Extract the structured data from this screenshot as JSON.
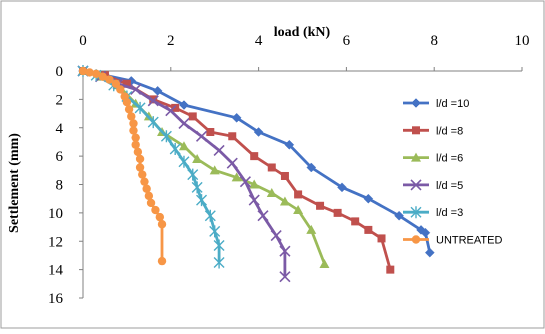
{
  "chart_data": {
    "type": "line",
    "title": "",
    "xlabel": "load (kN)",
    "ylabel": "Settlement (mm)",
    "xlim": [
      0,
      10
    ],
    "ylim": [
      0,
      16
    ],
    "y_inverted": true,
    "x_axis_position": "top",
    "x_ticks": [
      "0",
      "2",
      "4",
      "6",
      "8",
      "10"
    ],
    "y_ticks": [
      "0",
      "2",
      "4",
      "6",
      "8",
      "10",
      "12",
      "14",
      "16"
    ],
    "grid": false,
    "legend_position": "right",
    "series": [
      {
        "name": "l/d =10",
        "color": "#4472C4",
        "marker": "diamond",
        "points": [
          [
            0,
            0
          ],
          [
            0.5,
            0.3
          ],
          [
            1.1,
            0.7
          ],
          [
            1.7,
            1.4
          ],
          [
            2.3,
            2.4
          ],
          [
            3.5,
            3.3
          ],
          [
            4.0,
            4.3
          ],
          [
            4.7,
            5.2
          ],
          [
            5.2,
            6.8
          ],
          [
            5.9,
            8.2
          ],
          [
            6.5,
            9.0
          ],
          [
            7.2,
            10.2
          ],
          [
            7.7,
            11.2
          ],
          [
            7.8,
            11.4
          ],
          [
            7.9,
            12.8
          ]
        ]
      },
      {
        "name": "l/d =8",
        "color": "#C0504D",
        "marker": "square",
        "points": [
          [
            0,
            0
          ],
          [
            0.5,
            0.3
          ],
          [
            1.0,
            0.9
          ],
          [
            1.6,
            2.0
          ],
          [
            2.1,
            2.6
          ],
          [
            2.5,
            3.2
          ],
          [
            2.9,
            4.3
          ],
          [
            3.4,
            4.6
          ],
          [
            3.9,
            6.0
          ],
          [
            4.3,
            6.8
          ],
          [
            4.6,
            7.4
          ],
          [
            4.9,
            8.7
          ],
          [
            5.4,
            9.5
          ],
          [
            5.8,
            10.0
          ],
          [
            6.2,
            10.6
          ],
          [
            6.5,
            11.2
          ],
          [
            6.8,
            11.8
          ],
          [
            7.0,
            14.0
          ]
        ]
      },
      {
        "name": "l/d =6",
        "color": "#9BBB59",
        "marker": "triangle",
        "points": [
          [
            0,
            0
          ],
          [
            0.4,
            0.4
          ],
          [
            0.8,
            1.0
          ],
          [
            1.2,
            2.3
          ],
          [
            1.5,
            3.2
          ],
          [
            1.8,
            4.3
          ],
          [
            2.3,
            5.3
          ],
          [
            2.6,
            6.2
          ],
          [
            3.0,
            7.0
          ],
          [
            3.5,
            7.5
          ],
          [
            3.9,
            8.0
          ],
          [
            4.3,
            8.6
          ],
          [
            4.6,
            9.2
          ],
          [
            4.9,
            9.8
          ],
          [
            5.2,
            11.2
          ],
          [
            5.5,
            13.6
          ]
        ]
      },
      {
        "name": "l/d =5",
        "color": "#7B5AA6",
        "marker": "x",
        "points": [
          [
            0,
            0
          ],
          [
            0.4,
            0.4
          ],
          [
            0.8,
            0.9
          ],
          [
            1.2,
            1.3
          ],
          [
            1.6,
            2.1
          ],
          [
            2.0,
            2.8
          ],
          [
            2.3,
            3.7
          ],
          [
            2.7,
            4.6
          ],
          [
            3.1,
            5.6
          ],
          [
            3.4,
            6.5
          ],
          [
            3.7,
            7.8
          ],
          [
            3.9,
            9.1
          ],
          [
            4.1,
            10.2
          ],
          [
            4.4,
            11.6
          ],
          [
            4.6,
            12.7
          ],
          [
            4.6,
            14.5
          ]
        ]
      },
      {
        "name": "l/d =3",
        "color": "#4BACC6",
        "marker": "star",
        "points": [
          [
            0,
            0
          ],
          [
            0.3,
            0.3
          ],
          [
            0.7,
            1.0
          ],
          [
            1.0,
            1.8
          ],
          [
            1.3,
            2.6
          ],
          [
            1.6,
            3.6
          ],
          [
            1.9,
            4.6
          ],
          [
            2.1,
            5.5
          ],
          [
            2.3,
            6.4
          ],
          [
            2.5,
            7.3
          ],
          [
            2.6,
            8.2
          ],
          [
            2.7,
            9.1
          ],
          [
            2.9,
            10.2
          ],
          [
            3.0,
            11.3
          ],
          [
            3.1,
            12.3
          ],
          [
            3.1,
            13.5
          ]
        ]
      },
      {
        "name": "UNTREATED",
        "color": "#F79646",
        "marker": "circle",
        "points": [
          [
            0,
            0
          ],
          [
            0.15,
            0.1
          ],
          [
            0.3,
            0.2
          ],
          [
            0.45,
            0.4
          ],
          [
            0.6,
            0.6
          ],
          [
            0.75,
            0.9
          ],
          [
            0.85,
            1.3
          ],
          [
            0.95,
            1.8
          ],
          [
            1.0,
            2.2
          ],
          [
            1.05,
            2.7
          ],
          [
            1.1,
            3.2
          ],
          [
            1.15,
            3.7
          ],
          [
            1.15,
            4.2
          ],
          [
            1.2,
            4.7
          ],
          [
            1.2,
            5.2
          ],
          [
            1.25,
            5.7
          ],
          [
            1.3,
            6.2
          ],
          [
            1.3,
            6.8
          ],
          [
            1.35,
            7.3
          ],
          [
            1.4,
            7.8
          ],
          [
            1.45,
            8.3
          ],
          [
            1.5,
            8.8
          ],
          [
            1.55,
            9.3
          ],
          [
            1.65,
            9.8
          ],
          [
            1.75,
            10.3
          ],
          [
            1.8,
            10.8
          ],
          [
            1.8,
            13.4
          ]
        ]
      }
    ]
  }
}
